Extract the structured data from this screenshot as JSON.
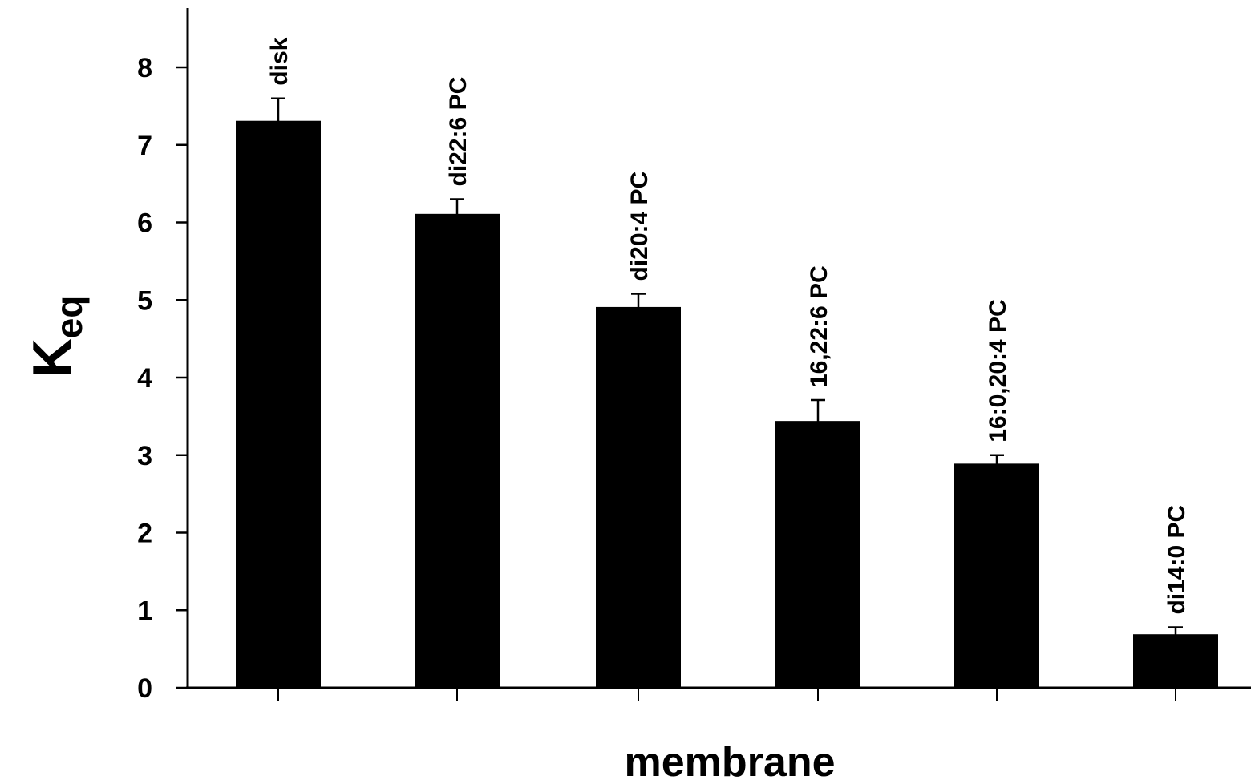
{
  "chart_data": {
    "type": "bar",
    "categories": [
      "disk",
      "di22:6 PC",
      "di20:4 PC",
      "16,22:6 PC",
      "16:0,20:4 PC",
      "di14:0 PC"
    ],
    "values": [
      7.3,
      6.1,
      4.9,
      3.43,
      2.88,
      0.68
    ],
    "errors": [
      0.3,
      0.2,
      0.18,
      0.28,
      0.12,
      0.1
    ],
    "title": "",
    "xlabel": "membrane",
    "ylabel": {
      "main": "K",
      "sub": "eq"
    },
    "ylim": [
      0,
      8
    ],
    "yticks": [
      0,
      1,
      2,
      3,
      4,
      5,
      6,
      7,
      8
    ],
    "bar_color": "#000000",
    "grid": false,
    "legend": "none"
  }
}
